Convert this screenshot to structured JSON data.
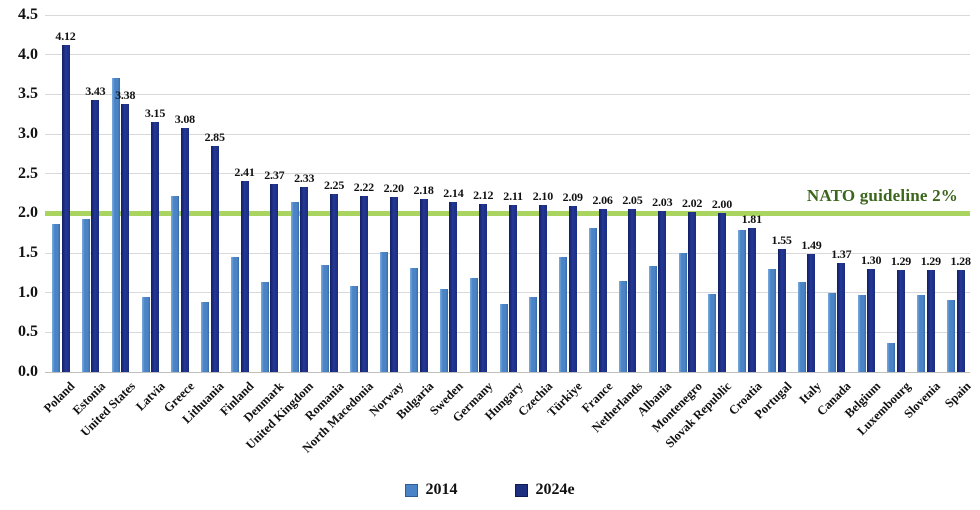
{
  "chart_data": {
    "type": "bar",
    "title": "",
    "xlabel": "",
    "ylabel": "",
    "ylim": [
      0,
      4.5
    ],
    "ytick_step": 0.5,
    "y_tick_labels": [
      "0.0",
      "0.5",
      "1.0",
      "1.5",
      "2.0",
      "2.5",
      "3.0",
      "3.5",
      "4.0",
      "4.5"
    ],
    "grid": true,
    "legend_position": "bottom",
    "x_tick_rotation": 45,
    "categories": [
      "Poland",
      "Estonia",
      "United States",
      "Latvia",
      "Greece",
      "Lithuania",
      "Finland",
      "Denmark",
      "United Kingdom",
      "Romania",
      "North Macedonia",
      "Norway",
      "Bulgaria",
      "Sweden",
      "Germany",
      "Hungary",
      "Czechia",
      "Türkiye",
      "France",
      "Netherlands",
      "Albania",
      "Montenegro",
      "Slovak Republic",
      "Croatia",
      "Portugal",
      "Italy",
      "Canada",
      "Belgium",
      "Luxembourg",
      "Slovenia",
      "Spain"
    ],
    "series": [
      {
        "name": "2014",
        "color": "#4a84c6",
        "data_labels": false,
        "values": [
          1.87,
          1.93,
          3.71,
          0.94,
          2.22,
          0.88,
          1.45,
          1.14,
          2.14,
          1.35,
          1.09,
          1.51,
          1.31,
          1.05,
          1.18,
          0.86,
          0.94,
          1.45,
          1.82,
          1.15,
          1.34,
          1.5,
          0.98,
          1.79,
          1.3,
          1.13,
          1.0,
          0.97,
          0.36,
          0.97,
          0.91
        ]
      },
      {
        "name": "2024e",
        "color": "#1d2f7e",
        "data_labels": true,
        "values": [
          4.12,
          3.43,
          3.38,
          3.15,
          3.08,
          2.85,
          2.41,
          2.37,
          2.33,
          2.25,
          2.22,
          2.2,
          2.18,
          2.14,
          2.12,
          2.11,
          2.1,
          2.09,
          2.06,
          2.05,
          2.03,
          2.02,
          2.0,
          1.81,
          1.55,
          1.49,
          1.37,
          1.3,
          1.29,
          1.29,
          1.28
        ]
      }
    ],
    "reference_line": {
      "value": 2.0,
      "label": "NATO guideline 2%",
      "line_color": "#a8d45f",
      "label_color": "#3c661c"
    }
  },
  "legend": {
    "items": [
      {
        "label": "2014",
        "color": "#4a84c6"
      },
      {
        "label": "2024e",
        "color": "#1d2f7e"
      }
    ]
  }
}
